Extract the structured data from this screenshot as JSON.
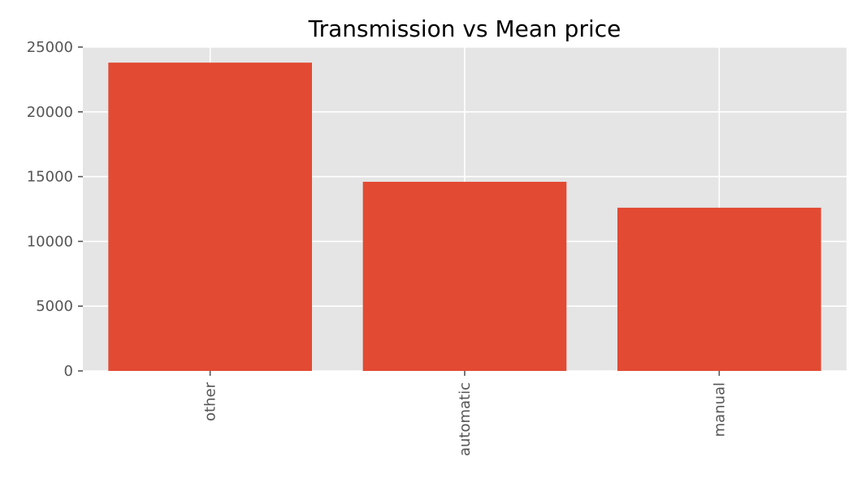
{
  "chart_data": {
    "type": "bar",
    "title": "Transmission vs Mean price",
    "xlabel": "",
    "ylabel": "",
    "categories": [
      "other",
      "automatic",
      "manual"
    ],
    "values": [
      23800,
      14600,
      12600
    ],
    "ylim": [
      0,
      25000
    ],
    "yticks": [
      0,
      5000,
      10000,
      15000,
      20000,
      25000
    ],
    "ytick_labels": [
      "0",
      "5000",
      "10000",
      "15000",
      "20000",
      "25000"
    ],
    "grid": true,
    "legend": "none",
    "x_tick_rotation": 90
  },
  "colors": {
    "bar": "#E24A33",
    "plot_background": "#E5E5E5",
    "grid": "#FFFFFF",
    "tick_text": "#555555",
    "title_text": "#000000"
  }
}
